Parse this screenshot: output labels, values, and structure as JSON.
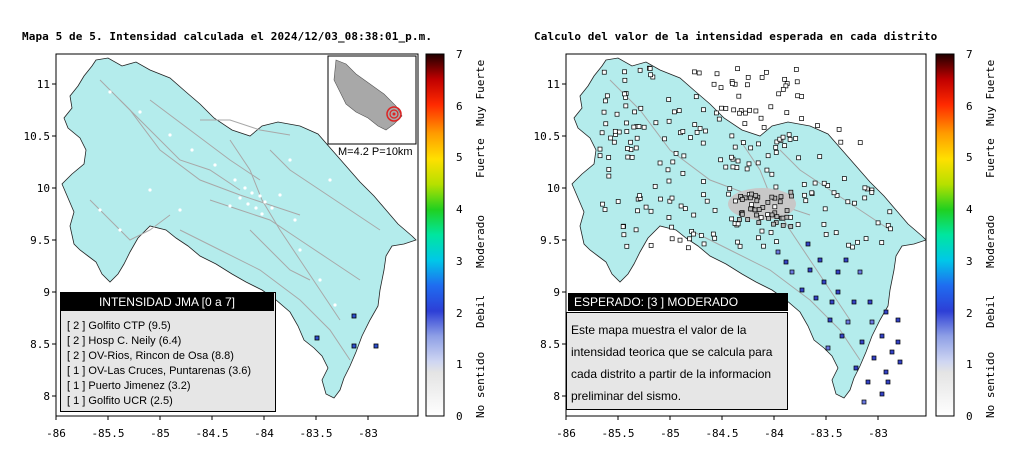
{
  "left_panel": {
    "title": "Mapa 5 de 5. Intensidad calculada el 2024/12/03_08:38:01_p.m.",
    "inset_label": "M=4.2 P=10km",
    "legend": {
      "heading": "INTENSIDAD JMA [0 a 7]",
      "rows": [
        "[ 2 ]  Golfito CTP (9.5)",
        "[ 2 ]  Hosp C. Neily (6.4)",
        "[ 2 ]  OV-Rios, Rincon de Osa (8.8)",
        "[ 1 ]  OV-Las Cruces, Puntarenas (3.6)",
        "[ 1 ]  Puerto Jimenez (3.2)",
        "[ 1 ]  Golfito UCR (2.5)"
      ]
    }
  },
  "right_panel": {
    "title": "Calculo del valor de la intensidad esperada en cada distrito",
    "heading": "ESPERADO: [3 ] MODERADO",
    "note": "Este mapa muestra el valor de la intensidad teorica que se calcula para cada distrito a partir de la informacion preliminar del sismo."
  },
  "axes": {
    "x_ticks": [
      "-86",
      "-85.5",
      "-85",
      "-84.5",
      "-84",
      "-83.5",
      "-83"
    ],
    "y_ticks": [
      "11",
      "10.5",
      "10",
      "9.5",
      "9",
      "8.5",
      "8"
    ]
  },
  "colorbar": {
    "ticks": [
      "7",
      "6",
      "5",
      "4",
      "3",
      "2",
      "1",
      "0"
    ],
    "categories": [
      "Muy Fuerte",
      "Fuerte",
      "Moderado",
      "Debil",
      "No sentido"
    ]
  },
  "colors": {
    "land": "#b4ecec",
    "frame": "#000000",
    "legend_bg": "#e6e6e6",
    "roads": "#a8a8a8"
  }
}
